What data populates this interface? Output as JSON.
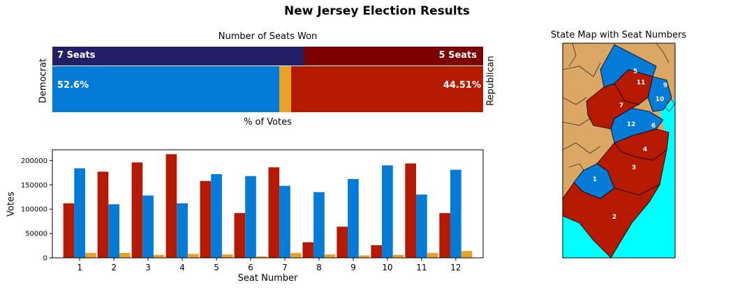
{
  "title": "New Jersey Election Results",
  "colors": {
    "democrat": "#047bd6",
    "republican": "#b51a01",
    "other": "#e8a22a",
    "dem_seats": "#221f66",
    "rep_seats": "#7d0000",
    "land": "#dba765",
    "water": "#00ffff"
  },
  "seats_chart": {
    "title": "Number of Seats Won",
    "dem_seats_label": "7 Seats",
    "rep_seats_label": "5 Seats",
    "dem_pct_label": "52.6%",
    "rep_pct_label": "44.51%",
    "dem_axis_label": "Democrat",
    "rep_axis_label": "Republican",
    "votes_label": "% of Votes"
  },
  "map": {
    "title": "State Map with Seat Numbers",
    "district_labels": [
      "1",
      "2",
      "3",
      "4",
      "5",
      "6",
      "7",
      "9",
      "10",
      "11",
      "12"
    ]
  },
  "chart_data": [
    {
      "type": "bar",
      "title": "Number of Seats Won",
      "orientation": "horizontal-stacked",
      "rows": [
        {
          "name": "Seats",
          "values": {
            "Democrat": 7,
            "Republican": 5
          }
        },
        {
          "name": "% of Votes",
          "values": {
            "Democrat": 52.6,
            "Other": 2.89,
            "Republican": 44.51
          }
        }
      ]
    },
    {
      "type": "bar",
      "xlabel": "Seat Number",
      "ylabel": "Votes",
      "ylim": [
        0,
        222000
      ],
      "yticks": [
        0,
        50000,
        100000,
        150000,
        200000
      ],
      "categories": [
        "1",
        "2",
        "3",
        "4",
        "5",
        "6",
        "7",
        "8",
        "9",
        "10",
        "11",
        "12"
      ],
      "series": [
        {
          "color": "#b51a01",
          "values": [
            112000,
            177000,
            196000,
            213000,
            158000,
            92000,
            186000,
            32000,
            64000,
            26000,
            194000,
            92000
          ]
        },
        {
          "color": "#047bd6",
          "values": [
            184000,
            110000,
            128000,
            112000,
            172000,
            168000,
            148000,
            135000,
            162000,
            190000,
            130000,
            181000
          ]
        },
        {
          "color": "#e8a22a",
          "values": [
            10000,
            10000,
            6000,
            8000,
            7000,
            3000,
            10000,
            7000,
            5000,
            6000,
            10000,
            14000
          ]
        }
      ]
    }
  ]
}
